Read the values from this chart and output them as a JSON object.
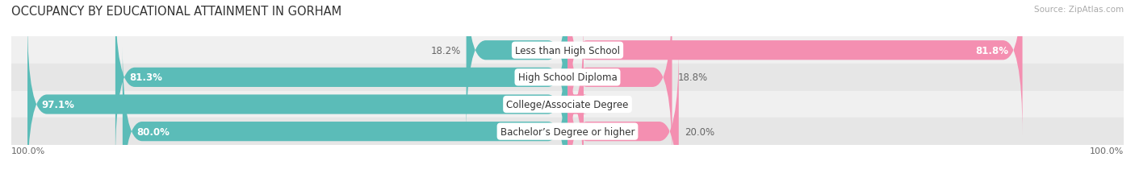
{
  "title": "OCCUPANCY BY EDUCATIONAL ATTAINMENT IN GORHAM",
  "source": "Source: ZipAtlas.com",
  "categories": [
    "Less than High School",
    "High School Diploma",
    "College/Associate Degree",
    "Bachelor’s Degree or higher"
  ],
  "owner_pct": [
    18.2,
    81.3,
    97.1,
    80.0
  ],
  "renter_pct": [
    81.8,
    18.8,
    2.9,
    20.0
  ],
  "owner_color": "#5bbcb8",
  "renter_color": "#f48fb1",
  "row_bg_colors": [
    "#f0f0f0",
    "#e6e6e6",
    "#f0f0f0",
    "#e6e6e6"
  ],
  "bar_height": 0.72,
  "title_fontsize": 10.5,
  "label_fontsize": 8.5,
  "pct_fontsize": 8.5,
  "axis_label_fontsize": 8,
  "legend_fontsize": 8.5,
  "source_fontsize": 7.5
}
